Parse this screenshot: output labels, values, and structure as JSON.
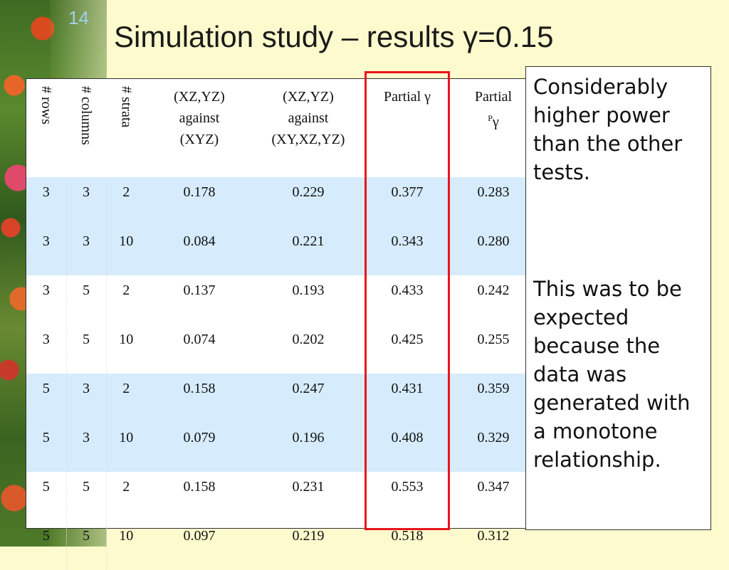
{
  "slide": {
    "number": "14",
    "title": "Simulation study – results γ=0.15"
  },
  "table": {
    "headers": {
      "rows": "# rows",
      "columns": "# columns",
      "strata": "# strata",
      "test1": [
        "(XZ,YZ)",
        "against",
        "(XYZ)"
      ],
      "test2": [
        "(XZ,YZ)",
        "against",
        "(XY,XZ,YZ)"
      ],
      "partial_gamma": "Partial γ",
      "partial_p_gamma_label": "Partial",
      "partial_p_gamma_sup": "P",
      "partial_p_gamma_symbol": "γ"
    },
    "rows": [
      {
        "rows": "3",
        "columns": "3",
        "strata": "2",
        "t1": "0.178",
        "t2": "0.229",
        "pg": "0.377",
        "ppg": "0.283"
      },
      {
        "rows": "3",
        "columns": "3",
        "strata": "10",
        "t1": "0.084",
        "t2": "0.221",
        "pg": "0.343",
        "ppg": "0.280"
      },
      {
        "rows": "3",
        "columns": "5",
        "strata": "2",
        "t1": "0.137",
        "t2": "0.193",
        "pg": "0.433",
        "ppg": "0.242"
      },
      {
        "rows": "3",
        "columns": "5",
        "strata": "10",
        "t1": "0.074",
        "t2": "0.202",
        "pg": "0.425",
        "ppg": "0.255"
      },
      {
        "rows": "5",
        "columns": "3",
        "strata": "2",
        "t1": "0.158",
        "t2": "0.247",
        "pg": "0.431",
        "ppg": "0.359"
      },
      {
        "rows": "5",
        "columns": "3",
        "strata": "10",
        "t1": "0.079",
        "t2": "0.196",
        "pg": "0.408",
        "ppg": "0.329"
      },
      {
        "rows": "5",
        "columns": "5",
        "strata": "2",
        "t1": "0.158",
        "t2": "0.231",
        "pg": "0.553",
        "ppg": "0.347"
      },
      {
        "rows": "5",
        "columns": "5",
        "strata": "10",
        "t1": "0.097",
        "t2": "0.219",
        "pg": "0.518",
        "ppg": "0.312"
      }
    ],
    "shaded_rows": [
      0,
      1,
      4,
      5
    ]
  },
  "notes": {
    "first": "Considerably higher power than the other tests.",
    "second": "This was to be expected because the data was generated with a monotone relationship."
  },
  "colors": {
    "background": "#fdfbcd",
    "row_shade": "#d6ecfc",
    "highlight": "#e8141b",
    "slide_number": "#9fd3e8"
  }
}
